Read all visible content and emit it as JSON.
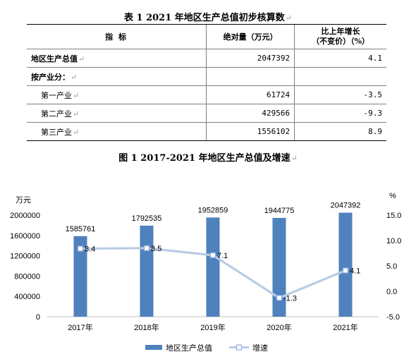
{
  "table": {
    "title": "表 1  2021 年地区生产总值初步核算数",
    "para_mark": "↵",
    "headers": {
      "indicator": "指      标",
      "absolute": "绝对量（万元）",
      "growth_line1": "比上年增长",
      "growth_line2": "（不变价）（%）"
    },
    "rows": [
      {
        "label": "地区生产总值",
        "value": "2047392",
        "growth": "4.1",
        "bold": true,
        "indent": false
      },
      {
        "label": "按产业分：",
        "value": "",
        "growth": "",
        "bold": true,
        "indent": false
      },
      {
        "label": "第一产业",
        "value": "61724",
        "growth": "-3.5",
        "bold": false,
        "indent": true
      },
      {
        "label": "第二产业",
        "value": "429566",
        "growth": "-9.3",
        "bold": false,
        "indent": true
      },
      {
        "label": "第三产业",
        "value": "1556102",
        "growth": "8.9",
        "bold": false,
        "indent": true
      }
    ]
  },
  "figure": {
    "title": "图 1  2017-2021 年地区生产总值及增速"
  },
  "chart_data": {
    "type": "bar",
    "categories": [
      "2017年",
      "2018年",
      "2019年",
      "2020年",
      "2021年"
    ],
    "series": [
      {
        "name": "地区生产总值",
        "type": "bar",
        "axis": "left",
        "color": "#4f81bd",
        "values": [
          1585761,
          1792535,
          1952859,
          1944775,
          2047392
        ]
      },
      {
        "name": "增速",
        "type": "line",
        "axis": "right",
        "color": "#b8cce4",
        "values": [
          8.4,
          8.5,
          7.1,
          -1.3,
          4.1
        ]
      }
    ],
    "y_left": {
      "unit": "万元",
      "ticks": [
        "0",
        "400000",
        "800000",
        "1200000",
        "1600000",
        "2000000"
      ],
      "ylim": [
        0,
        2000000
      ]
    },
    "y_right": {
      "unit": "%",
      "ticks": [
        "-5.0",
        "0.0",
        "5.0",
        "10.0",
        "15.0"
      ],
      "ylim": [
        -5,
        15
      ]
    },
    "bar_labels": [
      "1585761",
      "1792535",
      "1952859",
      "1944775",
      "2047392"
    ],
    "line_labels": [
      "8.4",
      "8.5",
      "7.1",
      "-1.3",
      "4.1"
    ],
    "legend_position": "bottom",
    "grid": false
  }
}
